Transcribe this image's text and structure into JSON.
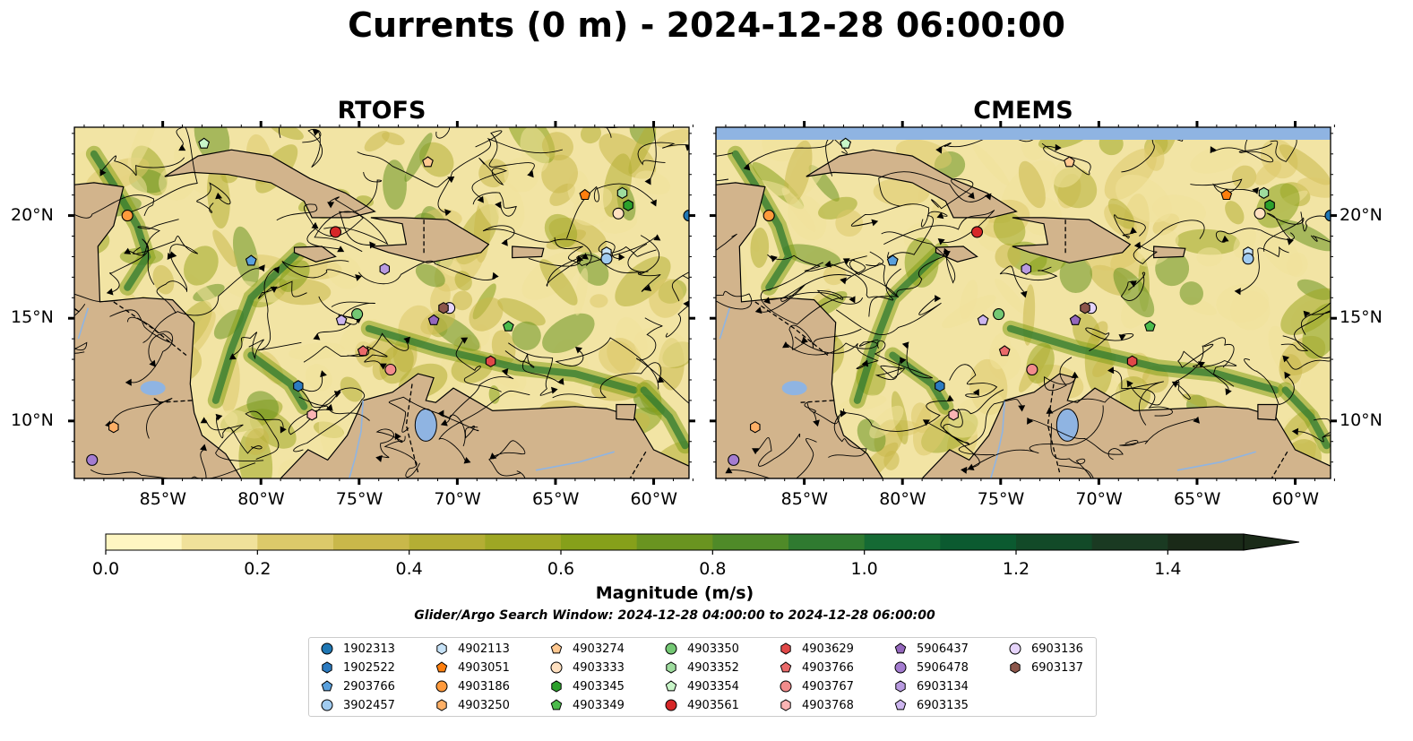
{
  "title": "Currents (0 m) - 2024-12-28 06:00:00",
  "panels": [
    {
      "title": "RTOFS"
    },
    {
      "title": "CMEMS"
    }
  ],
  "axes": {
    "lon_ticks": [
      "85°W",
      "80°W",
      "75°W",
      "70°W",
      "65°W",
      "60°W"
    ],
    "lat_ticks": [
      "20°N",
      "15°N",
      "10°N"
    ],
    "lon_values": [
      -85,
      -80,
      -75,
      -70,
      -65,
      -60
    ],
    "lat_values": [
      20,
      15,
      10
    ],
    "lon_range": [
      -89.5,
      -58.2
    ],
    "lat_range": [
      7.2,
      24.3
    ]
  },
  "colorbar": {
    "label": "Magnitude (m/s)",
    "ticks": [
      "0.0",
      "0.2",
      "0.4",
      "0.6",
      "0.8",
      "1.0",
      "1.2",
      "1.4"
    ],
    "range": [
      0,
      1.5
    ],
    "extend": "max",
    "colors": [
      "#fef6c2",
      "#f0e19a",
      "#dcc96a",
      "#c9b84a",
      "#b4ae34",
      "#9ea724",
      "#86a01a",
      "#6a9420",
      "#4f8a28",
      "#2f7a30",
      "#156a34",
      "#0b5a30",
      "#124a28",
      "#1a3a22",
      "#1a2a18"
    ]
  },
  "search_window": "Glider/Argo Search Window: 2024-12-28 04:00:00 to 2024-12-28 06:00:00",
  "legend": [
    {
      "id": "1902313",
      "marker": "circle",
      "color": "#1f77b4"
    },
    {
      "id": "1902522",
      "marker": "hexagon",
      "color": "#2c7bc0"
    },
    {
      "id": "2903766",
      "marker": "pentagon",
      "color": "#5aa0dc"
    },
    {
      "id": "3902457",
      "marker": "circle",
      "color": "#a0cbf0"
    },
    {
      "id": "4902113",
      "marker": "hexagon",
      "color": "#c6e2f7"
    },
    {
      "id": "4903051",
      "marker": "pentagon",
      "color": "#ff7f0e"
    },
    {
      "id": "4903186",
      "marker": "circle",
      "color": "#ff9a3c"
    },
    {
      "id": "4903250",
      "marker": "hexagon",
      "color": "#ffb066"
    },
    {
      "id": "4903274",
      "marker": "pentagon",
      "color": "#ffc890"
    },
    {
      "id": "4903333",
      "marker": "circle",
      "color": "#ffe0c0"
    },
    {
      "id": "4903345",
      "marker": "hexagon",
      "color": "#2ca02c"
    },
    {
      "id": "4903349",
      "marker": "pentagon",
      "color": "#4cbb4c"
    },
    {
      "id": "4903350",
      "marker": "circle",
      "color": "#74c874"
    },
    {
      "id": "4903352",
      "marker": "hexagon",
      "color": "#9edc9e"
    },
    {
      "id": "4903354",
      "marker": "pentagon",
      "color": "#c8f5c8"
    },
    {
      "id": "4903561",
      "marker": "circle",
      "color": "#d62728"
    },
    {
      "id": "4903629",
      "marker": "hexagon",
      "color": "#e04848"
    },
    {
      "id": "4903766",
      "marker": "pentagon",
      "color": "#ea6a6a"
    },
    {
      "id": "4903767",
      "marker": "circle",
      "color": "#f28c8c"
    },
    {
      "id": "4903768",
      "marker": "hexagon",
      "color": "#fbb4b4"
    },
    {
      "id": "5906437",
      "marker": "pentagon",
      "color": "#9467bd"
    },
    {
      "id": "5906478",
      "marker": "circle",
      "color": "#a47cd0"
    },
    {
      "id": "6903134",
      "marker": "hexagon",
      "color": "#b89ae0"
    },
    {
      "id": "6903135",
      "marker": "pentagon",
      "color": "#cdb6ef"
    },
    {
      "id": "6903136",
      "marker": "circle",
      "color": "#e6d4fb"
    },
    {
      "id": "6903137",
      "marker": "hexagon",
      "color": "#8c564b"
    }
  ],
  "floats": [
    {
      "id": "1902313",
      "lon": -58.2,
      "lat": 20.0
    },
    {
      "id": "4903354",
      "lon": -82.9,
      "lat": 23.5
    },
    {
      "id": "4903274",
      "lon": -71.5,
      "lat": 22.6
    },
    {
      "id": "4903051",
      "lon": -63.5,
      "lat": 21.0
    },
    {
      "id": "4903352",
      "lon": -61.6,
      "lat": 21.1
    },
    {
      "id": "4903345",
      "lon": -61.3,
      "lat": 20.5
    },
    {
      "id": "4903333",
      "lon": -61.8,
      "lat": 20.1
    },
    {
      "id": "4903186",
      "lon": -86.8,
      "lat": 20.0
    },
    {
      "id": "4903561",
      "lon": -76.2,
      "lat": 19.2
    },
    {
      "id": "2903766",
      "lon": -80.5,
      "lat": 17.8
    },
    {
      "id": "4902113",
      "lon": -62.4,
      "lat": 18.2
    },
    {
      "id": "3902457",
      "lon": -62.4,
      "lat": 17.9
    },
    {
      "id": "6903134",
      "lon": -73.7,
      "lat": 17.4
    },
    {
      "id": "4903350",
      "lon": -75.1,
      "lat": 15.2
    },
    {
      "id": "6903135",
      "lon": -75.9,
      "lat": 14.9
    },
    {
      "id": "6903136",
      "lon": -70.4,
      "lat": 15.5
    },
    {
      "id": "6903137",
      "lon": -70.7,
      "lat": 15.5
    },
    {
      "id": "5906437",
      "lon": -71.2,
      "lat": 14.9
    },
    {
      "id": "4903349",
      "lon": -67.4,
      "lat": 14.6
    },
    {
      "id": "4903766",
      "lon": -74.8,
      "lat": 13.4
    },
    {
      "id": "4903767",
      "lon": -73.4,
      "lat": 12.5
    },
    {
      "id": "4903629",
      "lon": -68.3,
      "lat": 12.9
    },
    {
      "id": "1902522",
      "lon": -78.1,
      "lat": 11.7
    },
    {
      "id": "4903768",
      "lon": -77.4,
      "lat": 10.3
    },
    {
      "id": "4903250",
      "lon": -87.5,
      "lat": 9.7
    },
    {
      "id": "5906478",
      "lon": -88.6,
      "lat": 8.1
    }
  ]
}
